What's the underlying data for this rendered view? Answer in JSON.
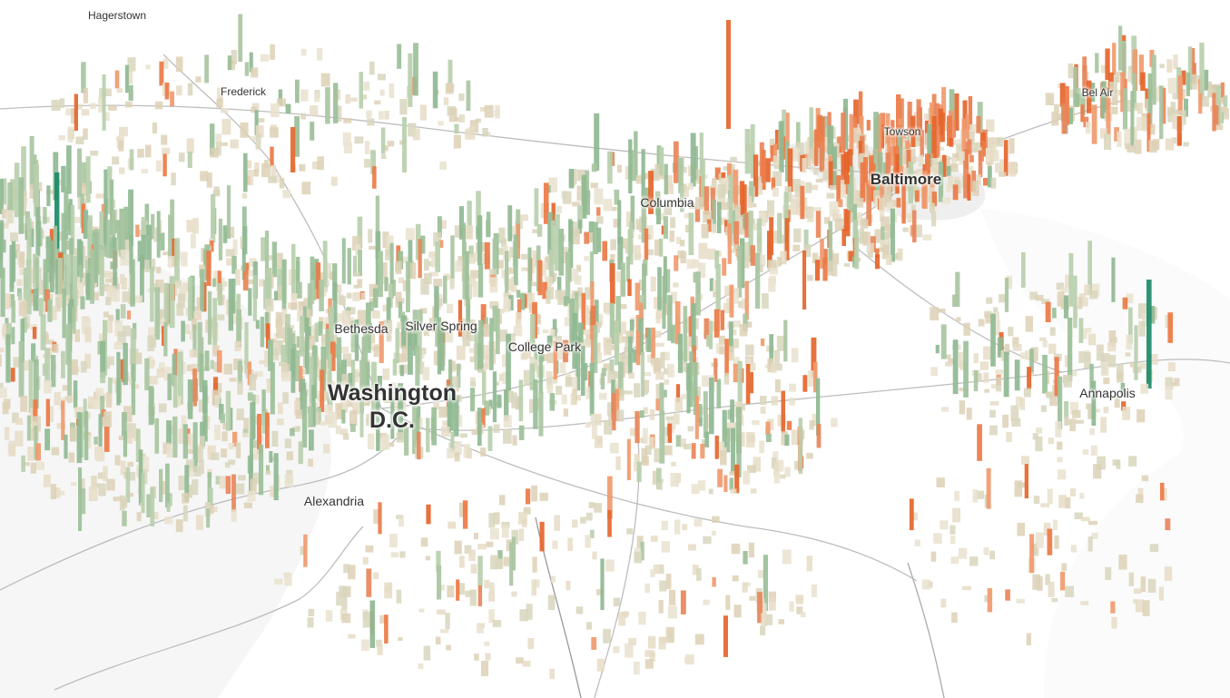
{
  "places": [
    "Hagerstown",
    "Frederick",
    "Towson",
    "Bel Air",
    "Baltimore",
    "Columbia",
    "Bethesda",
    "Silver Spring",
    "College Park",
    "Washington D.C.",
    "Annapolis",
    "Alexandria"
  ]
}
